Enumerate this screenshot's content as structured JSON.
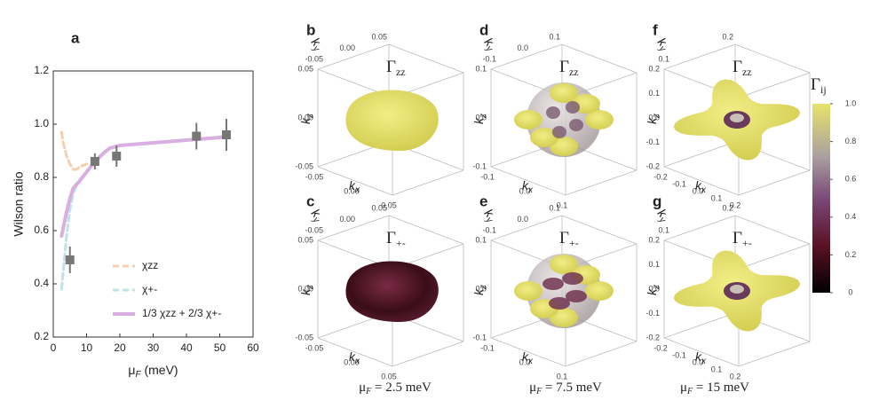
{
  "chart_data": {
    "type": "line",
    "panel_label": "a",
    "x_label": [
      "μ",
      "F",
      " (meV)"
    ],
    "y_label": "Wilson ratio",
    "xlim": [
      0,
      60
    ],
    "xticks": [
      0,
      10,
      20,
      30,
      40,
      50,
      60
    ],
    "ylim": [
      0.2,
      1.2
    ],
    "yticks": [
      0.2,
      0.4,
      0.6,
      0.8,
      {
        "value": 1,
        "label": "1.0"
      },
      1.2
    ],
    "series": [
      {
        "name": "χzz",
        "color": "#f6cfb0",
        "style": "dashed",
        "x": [
          2.5,
          3,
          4,
          5,
          6,
          7,
          8,
          10
        ],
        "values": [
          0.97,
          0.93,
          0.88,
          0.85,
          0.83,
          0.83,
          0.84,
          0.85
        ]
      },
      {
        "name": "χ+-",
        "color": "#bfe3e6",
        "style": "dashed",
        "x": [
          2.5,
          3,
          4,
          5,
          6,
          7,
          8,
          10
        ],
        "values": [
          0.38,
          0.45,
          0.58,
          0.68,
          0.74,
          0.77,
          0.79,
          0.82
        ]
      },
      {
        "name": "1/3 χzz + 2/3 χ+-",
        "color": "#d9aee0",
        "style": "solid",
        "x": [
          2.5,
          3,
          4,
          5,
          6,
          7.5,
          10,
          12.5,
          15,
          17,
          20,
          30,
          40,
          50,
          52
        ],
        "values": [
          0.58,
          0.61,
          0.67,
          0.72,
          0.76,
          0.78,
          0.82,
          0.86,
          0.89,
          0.91,
          0.92,
          0.93,
          0.94,
          0.95,
          0.955
        ]
      }
    ],
    "points": {
      "color": "#777777",
      "x": [
        5,
        12.5,
        19,
        43,
        52
      ],
      "values": [
        0.49,
        0.86,
        0.88,
        0.955,
        0.96
      ],
      "errors": [
        0.05,
        0.03,
        0.04,
        0.05,
        0.06
      ]
    }
  },
  "panels": [
    {
      "label": "b",
      "title": "Γ",
      "title_sub": "zz",
      "shape": "blob",
      "tone": "bright",
      "ky_ticks": [
        "0.05",
        "0.00",
        "-0.05"
      ],
      "kz_ticks": [
        "0.05",
        "0.00",
        "-0.05"
      ],
      "kx_ticks": [
        "-0.05",
        "0.00",
        "0.05"
      ]
    },
    {
      "label": "c",
      "title": "Γ",
      "title_sub": "+-",
      "shape": "blob",
      "tone": "dark",
      "ky_ticks": [
        "0.05",
        "0.00",
        "-0.05"
      ],
      "kz_ticks": [
        "0.05",
        "0.00",
        "-0.05"
      ],
      "kx_ticks": [
        "-0.05",
        "0.00",
        "0.05"
      ]
    },
    {
      "label": "d",
      "title": "Γ",
      "title_sub": "zz",
      "shape": "sphere",
      "tone": "bright",
      "ky_ticks": [
        "0.1",
        "0.0",
        "-0.1"
      ],
      "kz_ticks": [
        "0.1",
        "0.0",
        "-0.1"
      ],
      "kx_ticks": [
        "-0.1",
        "0.0",
        "0.1"
      ]
    },
    {
      "label": "e",
      "title": "Γ",
      "title_sub": "+-",
      "shape": "sphere",
      "tone": "mixed",
      "ky_ticks": [
        "0.1",
        "0.0",
        "-0.1"
      ],
      "kz_ticks": [
        "0.1",
        "0.0",
        "-0.1"
      ],
      "kx_ticks": [
        "-0.1",
        "0.0",
        "0.1"
      ]
    },
    {
      "label": "f",
      "title": "Γ",
      "title_sub": "zz",
      "shape": "star",
      "tone": "bright",
      "ky_ticks": [
        "0.2",
        "0.1"
      ],
      "kz_ticks": [
        "0.2",
        "0.1",
        "0.0",
        "-0.1",
        "-0.2"
      ],
      "kx_ticks": [
        "-0.2",
        "-0.1",
        "0.0",
        "0.1",
        "0.2"
      ]
    },
    {
      "label": "g",
      "title": "Γ",
      "title_sub": "+-",
      "shape": "star",
      "tone": "bright",
      "ky_ticks": [
        "0.2",
        "0.1"
      ],
      "kz_ticks": [
        "0.2",
        "0.1",
        "0.0",
        "-0.1",
        "-0.2"
      ],
      "kx_ticks": [
        "-0.2",
        "-0.1",
        "0.0",
        "0.1",
        "0.2"
      ]
    }
  ],
  "axis_names": {
    "k": "k",
    "x": "x",
    "y": "y",
    "z": "z"
  },
  "colorbar": {
    "title": "Γ",
    "title_sub": "ij",
    "ticks": [
      0,
      0.2,
      0.4,
      0.6,
      0.8,
      {
        "value": 1,
        "label": "1.0"
      }
    ]
  },
  "captions": [
    {
      "mu": "μ",
      "sub": "F",
      "text": " = 2.5 meV"
    },
    {
      "mu": "μ",
      "sub": "F",
      "text": " = 7.5 meV"
    },
    {
      "mu": "μ",
      "sub": "F",
      "text": " = 15 meV"
    }
  ]
}
